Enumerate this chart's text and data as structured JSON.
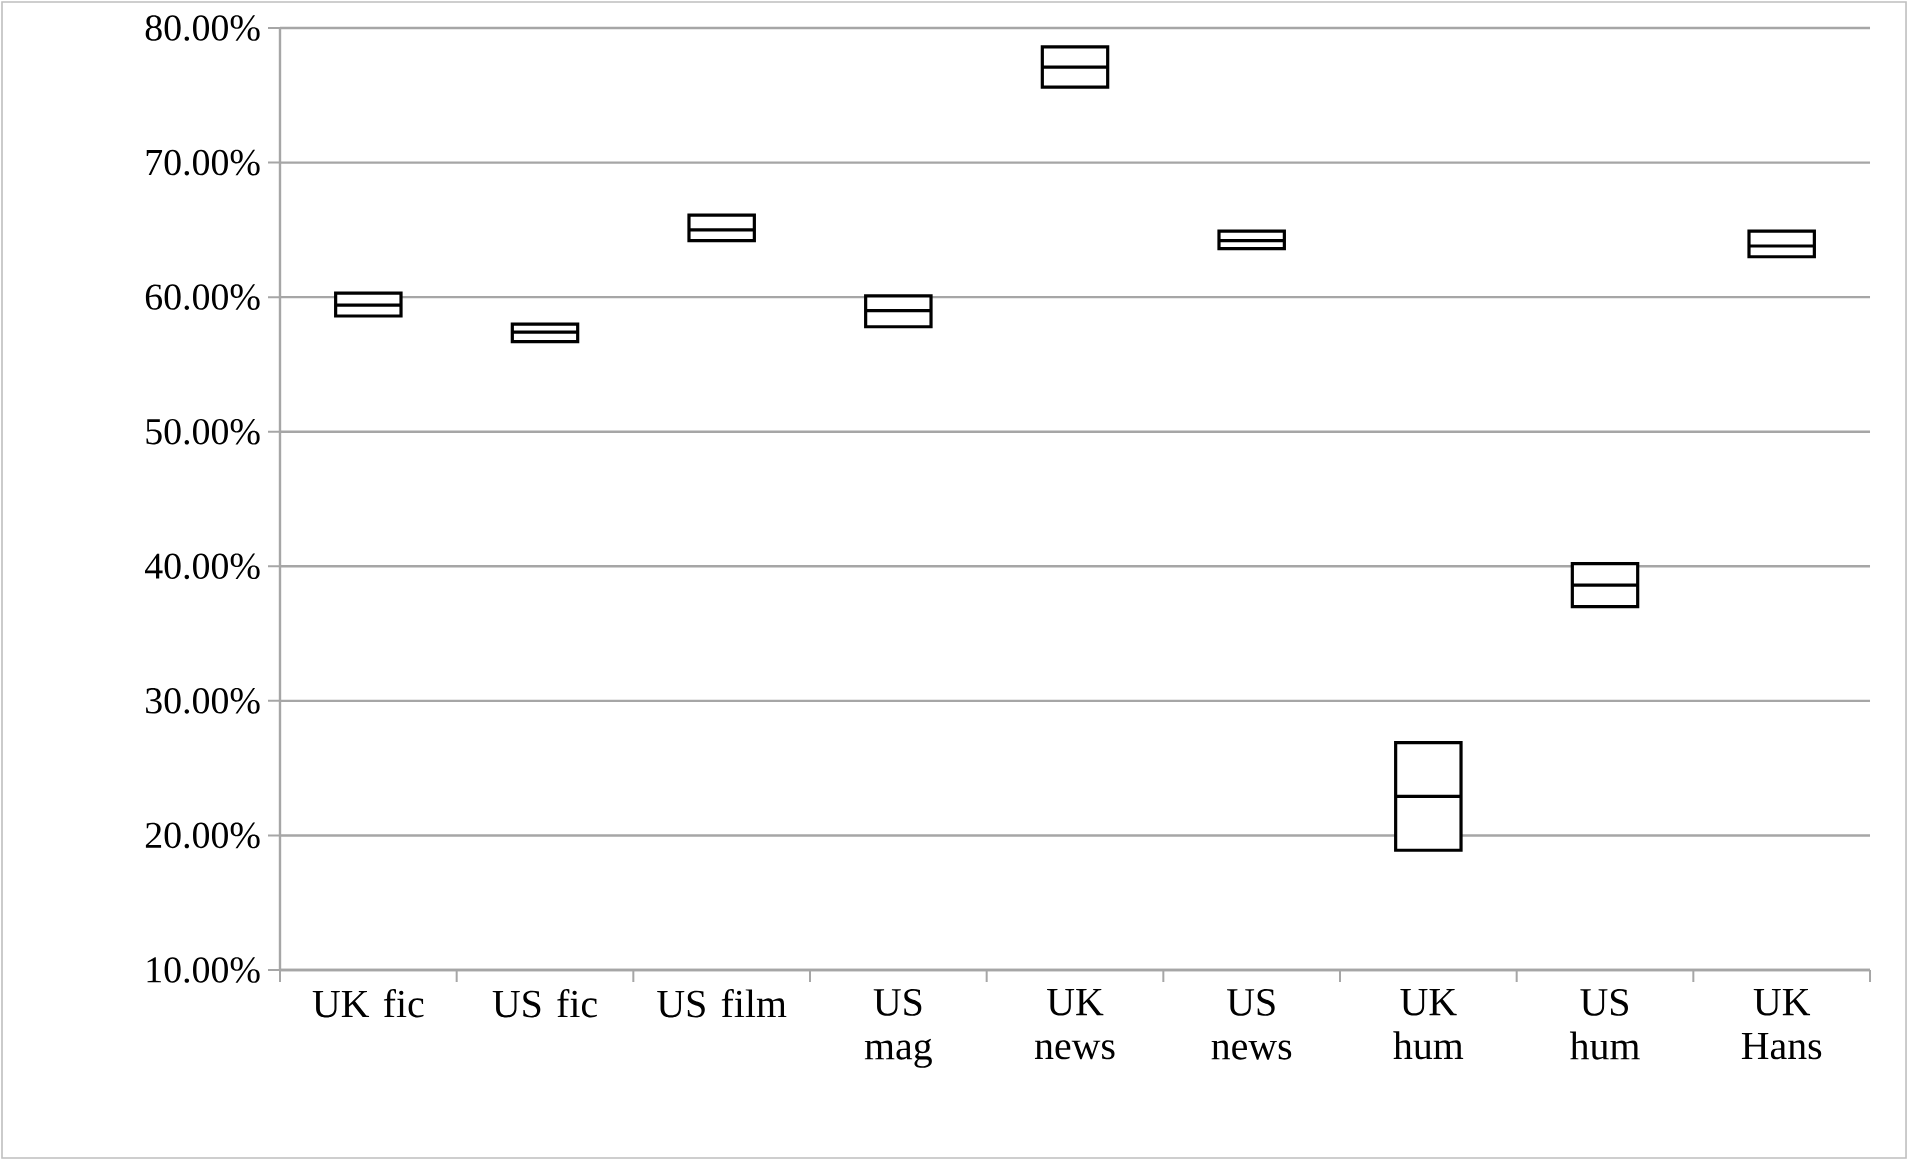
{
  "chart_data": {
    "type": "box",
    "categories": [
      "UK fic",
      "US fic",
      "US film",
      "US mag",
      "UK news",
      "US news",
      "UK hum",
      "US hum",
      "UK Hans"
    ],
    "series": [
      {
        "color": "#000000",
        "boxes": [
          {
            "low": 58.6,
            "q1": 58.6,
            "median": 59.4,
            "q3": 60.3,
            "high": 60.3
          },
          {
            "low": 56.7,
            "q1": 56.7,
            "median": 57.4,
            "q3": 58.0,
            "high": 58.0
          },
          {
            "low": 64.2,
            "q1": 64.2,
            "median": 65.0,
            "q3": 66.1,
            "high": 66.1
          },
          {
            "low": 57.8,
            "q1": 57.8,
            "median": 59.0,
            "q3": 60.1,
            "high": 60.1
          },
          {
            "low": 75.6,
            "q1": 75.6,
            "median": 77.1,
            "q3": 78.6,
            "high": 78.6
          },
          {
            "low": 63.6,
            "q1": 63.6,
            "median": 64.2,
            "q3": 64.9,
            "high": 64.9
          },
          {
            "low": 18.9,
            "q1": 18.9,
            "median": 22.9,
            "q3": 26.9,
            "high": 26.9
          },
          {
            "low": 37.0,
            "q1": 37.0,
            "median": 38.6,
            "q3": 40.2,
            "high": 40.2
          },
          {
            "low": 63.0,
            "q1": 63.0,
            "median": 63.8,
            "q3": 64.9,
            "high": 64.9
          }
        ]
      }
    ],
    "ylim": [
      10,
      80
    ],
    "yticks": [
      {
        "value": 10,
        "label": "10.00%"
      },
      {
        "value": 20,
        "label": "20.00%"
      },
      {
        "value": 30,
        "label": "30.00%"
      },
      {
        "value": 40,
        "label": "40.00%"
      },
      {
        "value": 50,
        "label": "50.00%"
      },
      {
        "value": 60,
        "label": "60.00%"
      },
      {
        "value": 70,
        "label": "70.00%"
      },
      {
        "value": 80,
        "label": "80.00%"
      }
    ],
    "grid": "y"
  }
}
